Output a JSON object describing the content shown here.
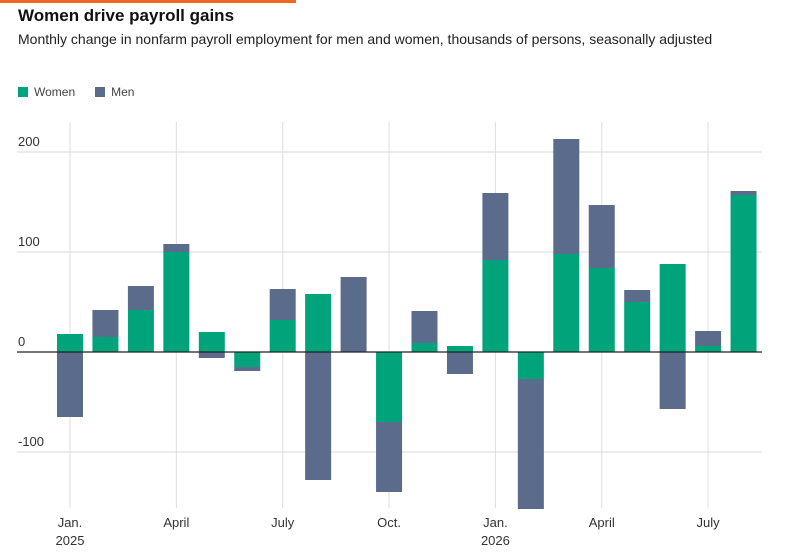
{
  "header": {
    "title": "Women drive payroll gains",
    "subtitle": "Monthly change in nonfarm payroll employment for men and women, thousands of persons, seasonally adjusted"
  },
  "legend": {
    "items": [
      {
        "label": "Women",
        "color": "#00a37a"
      },
      {
        "label": "Men",
        "color": "#5a6b8c"
      }
    ]
  },
  "chart_data": {
    "type": "bar",
    "stacked": true,
    "ylim": [
      -155,
      230
    ],
    "yticks": [
      -100,
      0,
      100,
      200
    ],
    "grid": true,
    "legend_position": "top-left",
    "x": [
      "Jan. 2025",
      "Feb. 2025",
      "Mar. 2025",
      "Apr. 2025",
      "May 2025",
      "Jun. 2025",
      "Jul. 2025",
      "Aug. 2025",
      "Sep. 2025",
      "Oct. 2025",
      "Nov. 2025",
      "Dec. 2025",
      "Jan. 2026",
      "Feb. 2026",
      "Mar. 2026",
      "Apr. 2026",
      "May 2026",
      "Jun. 2026",
      "Jul. 2026",
      "Aug. 2026"
    ],
    "xtick_labels": [
      {
        "index": 0,
        "line1": "Jan.",
        "line2": "2025"
      },
      {
        "index": 3,
        "line1": "April",
        "line2": ""
      },
      {
        "index": 6,
        "line1": "July",
        "line2": ""
      },
      {
        "index": 9,
        "line1": "Oct.",
        "line2": ""
      },
      {
        "index": 12,
        "line1": "Jan.",
        "line2": "2026"
      },
      {
        "index": 15,
        "line1": "April",
        "line2": ""
      },
      {
        "index": 18,
        "line1": "July",
        "line2": ""
      }
    ],
    "series": [
      {
        "name": "Women",
        "color": "#00a37a",
        "values": [
          18,
          15,
          42,
          100,
          20,
          -15,
          32,
          58,
          0,
          -70,
          9,
          6,
          92,
          -27,
          98,
          84,
          50,
          88,
          6,
          157
        ]
      },
      {
        "name": "Men",
        "color": "#5a6b8c",
        "values": [
          -65,
          27,
          24,
          8,
          -6,
          -4,
          31,
          -128,
          75,
          -70,
          32,
          -22,
          67,
          -130,
          115,
          63,
          12,
          -57,
          15,
          4
        ]
      }
    ]
  }
}
